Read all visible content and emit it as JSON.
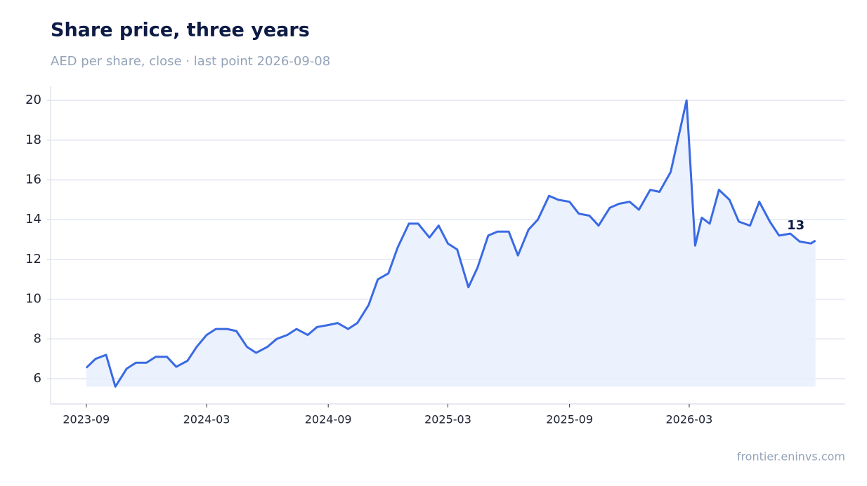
{
  "chart_data": {
    "type": "line",
    "title": "Share price, three years",
    "subtitle": "AED per share, close · last point 2026-09-08",
    "source": "frontier.eninvs.com",
    "x": [
      "2023-09-01",
      "2023-09-15",
      "2023-10-01",
      "2023-10-15",
      "2023-11-01",
      "2023-11-15",
      "2023-12-01",
      "2023-12-15",
      "2024-01-01",
      "2024-01-15",
      "2024-02-01",
      "2024-02-15",
      "2024-03-01",
      "2024-03-15",
      "2024-04-01",
      "2024-04-15",
      "2024-05-01",
      "2024-05-15",
      "2024-06-01",
      "2024-06-15",
      "2024-07-01",
      "2024-07-15",
      "2024-08-01",
      "2024-08-15",
      "2024-09-01",
      "2024-09-15",
      "2024-10-01",
      "2024-10-15",
      "2024-11-01",
      "2024-11-15",
      "2024-12-01",
      "2024-12-15",
      "2025-01-01",
      "2025-01-15",
      "2025-02-01",
      "2025-02-15",
      "2025-03-01",
      "2025-03-15",
      "2025-04-01",
      "2025-04-15",
      "2025-05-01",
      "2025-05-15",
      "2025-06-01",
      "2025-06-15",
      "2025-07-01",
      "2025-07-15",
      "2025-08-01",
      "2025-08-15",
      "2025-09-01",
      "2025-09-15",
      "2025-10-01",
      "2025-10-15",
      "2025-11-01",
      "2025-11-15",
      "2025-12-01",
      "2025-12-15",
      "2026-01-01",
      "2026-01-15",
      "2026-02-01",
      "2026-02-15",
      "2026-02-25",
      "2026-03-01",
      "2026-03-10",
      "2026-03-20",
      "2026-04-01",
      "2026-04-15",
      "2026-05-01",
      "2026-05-15",
      "2026-06-01",
      "2026-06-15",
      "2026-07-01",
      "2026-07-15",
      "2026-08-01",
      "2026-08-15",
      "2026-09-01",
      "2026-09-08"
    ],
    "series": [
      {
        "name": "Close",
        "color": "#3a6ae3",
        "fill": "#e9effd",
        "values": [
          6.55,
          7.0,
          7.2,
          5.6,
          6.5,
          6.8,
          6.8,
          7.1,
          7.1,
          6.6,
          6.9,
          7.6,
          8.2,
          8.5,
          8.5,
          8.4,
          7.6,
          7.3,
          7.6,
          8.0,
          8.2,
          8.5,
          8.2,
          8.6,
          8.7,
          8.8,
          8.5,
          8.8,
          9.7,
          11.0,
          11.3,
          12.6,
          13.8,
          13.8,
          13.1,
          13.7,
          12.8,
          12.5,
          10.6,
          11.6,
          13.2,
          13.4,
          13.4,
          12.2,
          13.5,
          14.0,
          15.2,
          15.0,
          14.9,
          14.3,
          14.2,
          13.7,
          14.6,
          14.8,
          14.9,
          14.5,
          15.5,
          15.4,
          16.4,
          18.5,
          20.0,
          17.8,
          12.7,
          14.1,
          13.8,
          15.5,
          15.0,
          13.9,
          13.7,
          14.9,
          13.9,
          13.2,
          13.3,
          12.9,
          12.8,
          12.95
        ]
      }
    ],
    "annotation": {
      "text": "13"
    },
    "xlim": [
      "2023-07-09",
      "2026-10-23"
    ],
    "xticks": [
      "2023-09",
      "2024-03",
      "2024-09",
      "2025-03",
      "2025-09",
      "2026-03"
    ],
    "ylim": [
      4.73,
      20.71
    ],
    "yticks": [
      6,
      8,
      10,
      12,
      14,
      16,
      18,
      20
    ],
    "grid": true
  }
}
